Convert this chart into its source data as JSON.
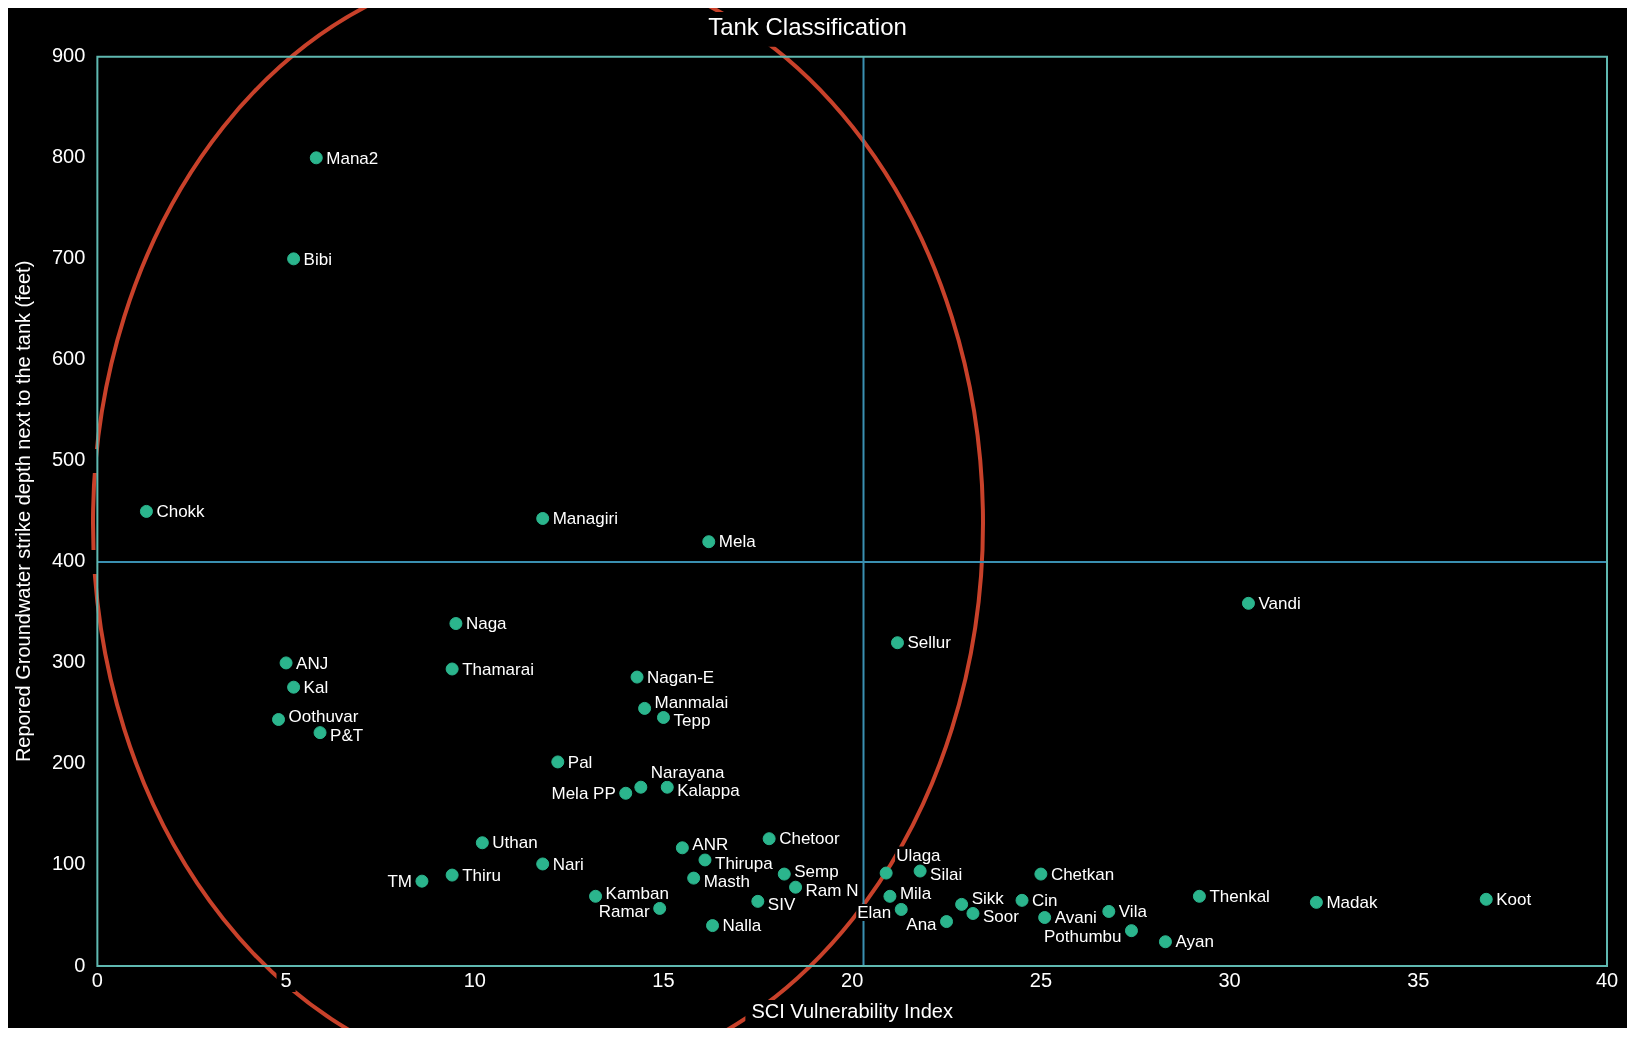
{
  "chart_data": {
    "type": "scatter",
    "title": "Tank Classification",
    "xlabel": "SCI Vulnerability Index",
    "ylabel": "Repored Groundwater strike depth next to the tank (feet)",
    "xlim": [
      0,
      40
    ],
    "xticks": [
      0,
      5,
      10,
      15,
      20,
      25,
      30,
      35,
      40
    ],
    "ylim": [
      0,
      900
    ],
    "yticks": [
      0,
      100,
      200,
      300,
      400,
      500,
      600,
      700,
      800,
      900
    ],
    "grid": false,
    "legend": false,
    "marker": "circle",
    "ref_lines": [
      {
        "axis": "x",
        "value": 20.3,
        "color": "#3a8fb0"
      },
      {
        "axis": "y",
        "value": 400,
        "color": "#3a8fb0"
      }
    ],
    "series": [
      {
        "color": "#2bb58d",
        "x": [
          5.8,
          5.2,
          1.3,
          11.8,
          16.2,
          30.5,
          21.2,
          9.5,
          5.0,
          9.4,
          14.3,
          5.2,
          14.5,
          15.0,
          4.8,
          5.9,
          12.2,
          14.0,
          14.4,
          15.1,
          10.2,
          17.8,
          15.5,
          16.1,
          11.8,
          9.4,
          8.6,
          15.8,
          18.2,
          18.5,
          13.2,
          14.9,
          17.5,
          16.3,
          20.9,
          21.8,
          21.0,
          21.3,
          22.5,
          22.9,
          23.2,
          24.5,
          25.1,
          26.8,
          27.4,
          28.3,
          29.2,
          32.3,
          25.0,
          36.8
        ],
        "values": [
          800,
          700,
          450,
          443,
          420,
          359,
          320,
          339,
          300,
          294,
          286,
          276,
          255,
          246,
          244,
          231,
          202,
          171,
          177,
          177,
          122,
          126,
          117,
          105,
          101,
          90,
          84,
          87,
          91,
          78,
          69,
          57,
          64,
          40,
          92,
          94,
          69,
          56,
          44,
          61,
          52,
          65,
          48,
          54,
          35,
          24,
          69,
          63,
          91,
          66
        ],
        "value_labels": [
          "Mana2",
          "Bibi",
          "Chokk",
          "Managiri",
          "Mela",
          "Vandi",
          "Sellur",
          "Naga",
          "ANJ",
          "Thamarai",
          "Nagan-E",
          "Kal",
          "Manmalai",
          "Tepp",
          "Oothuvar",
          "P&T",
          "Pal",
          "Mela PP",
          "Narayana",
          "Kalappa",
          "Uthan",
          "Chetoor",
          "ANR",
          "Thirupa",
          "Nari",
          "Thiru",
          "TM",
          "Masth",
          "Semp",
          "Ram N",
          "Kamban",
          "Ramar",
          "SIV",
          "Nalla",
          "Ulaga",
          "Silai",
          "Mila",
          "Elan",
          "Ana",
          "Sikk",
          "Soor",
          "Cin",
          "Avani",
          "Vila",
          "Pothumbu",
          "Ayan",
          "Thenkal",
          "Madak",
          "Chetkan",
          "Koot"
        ]
      }
    ]
  }
}
